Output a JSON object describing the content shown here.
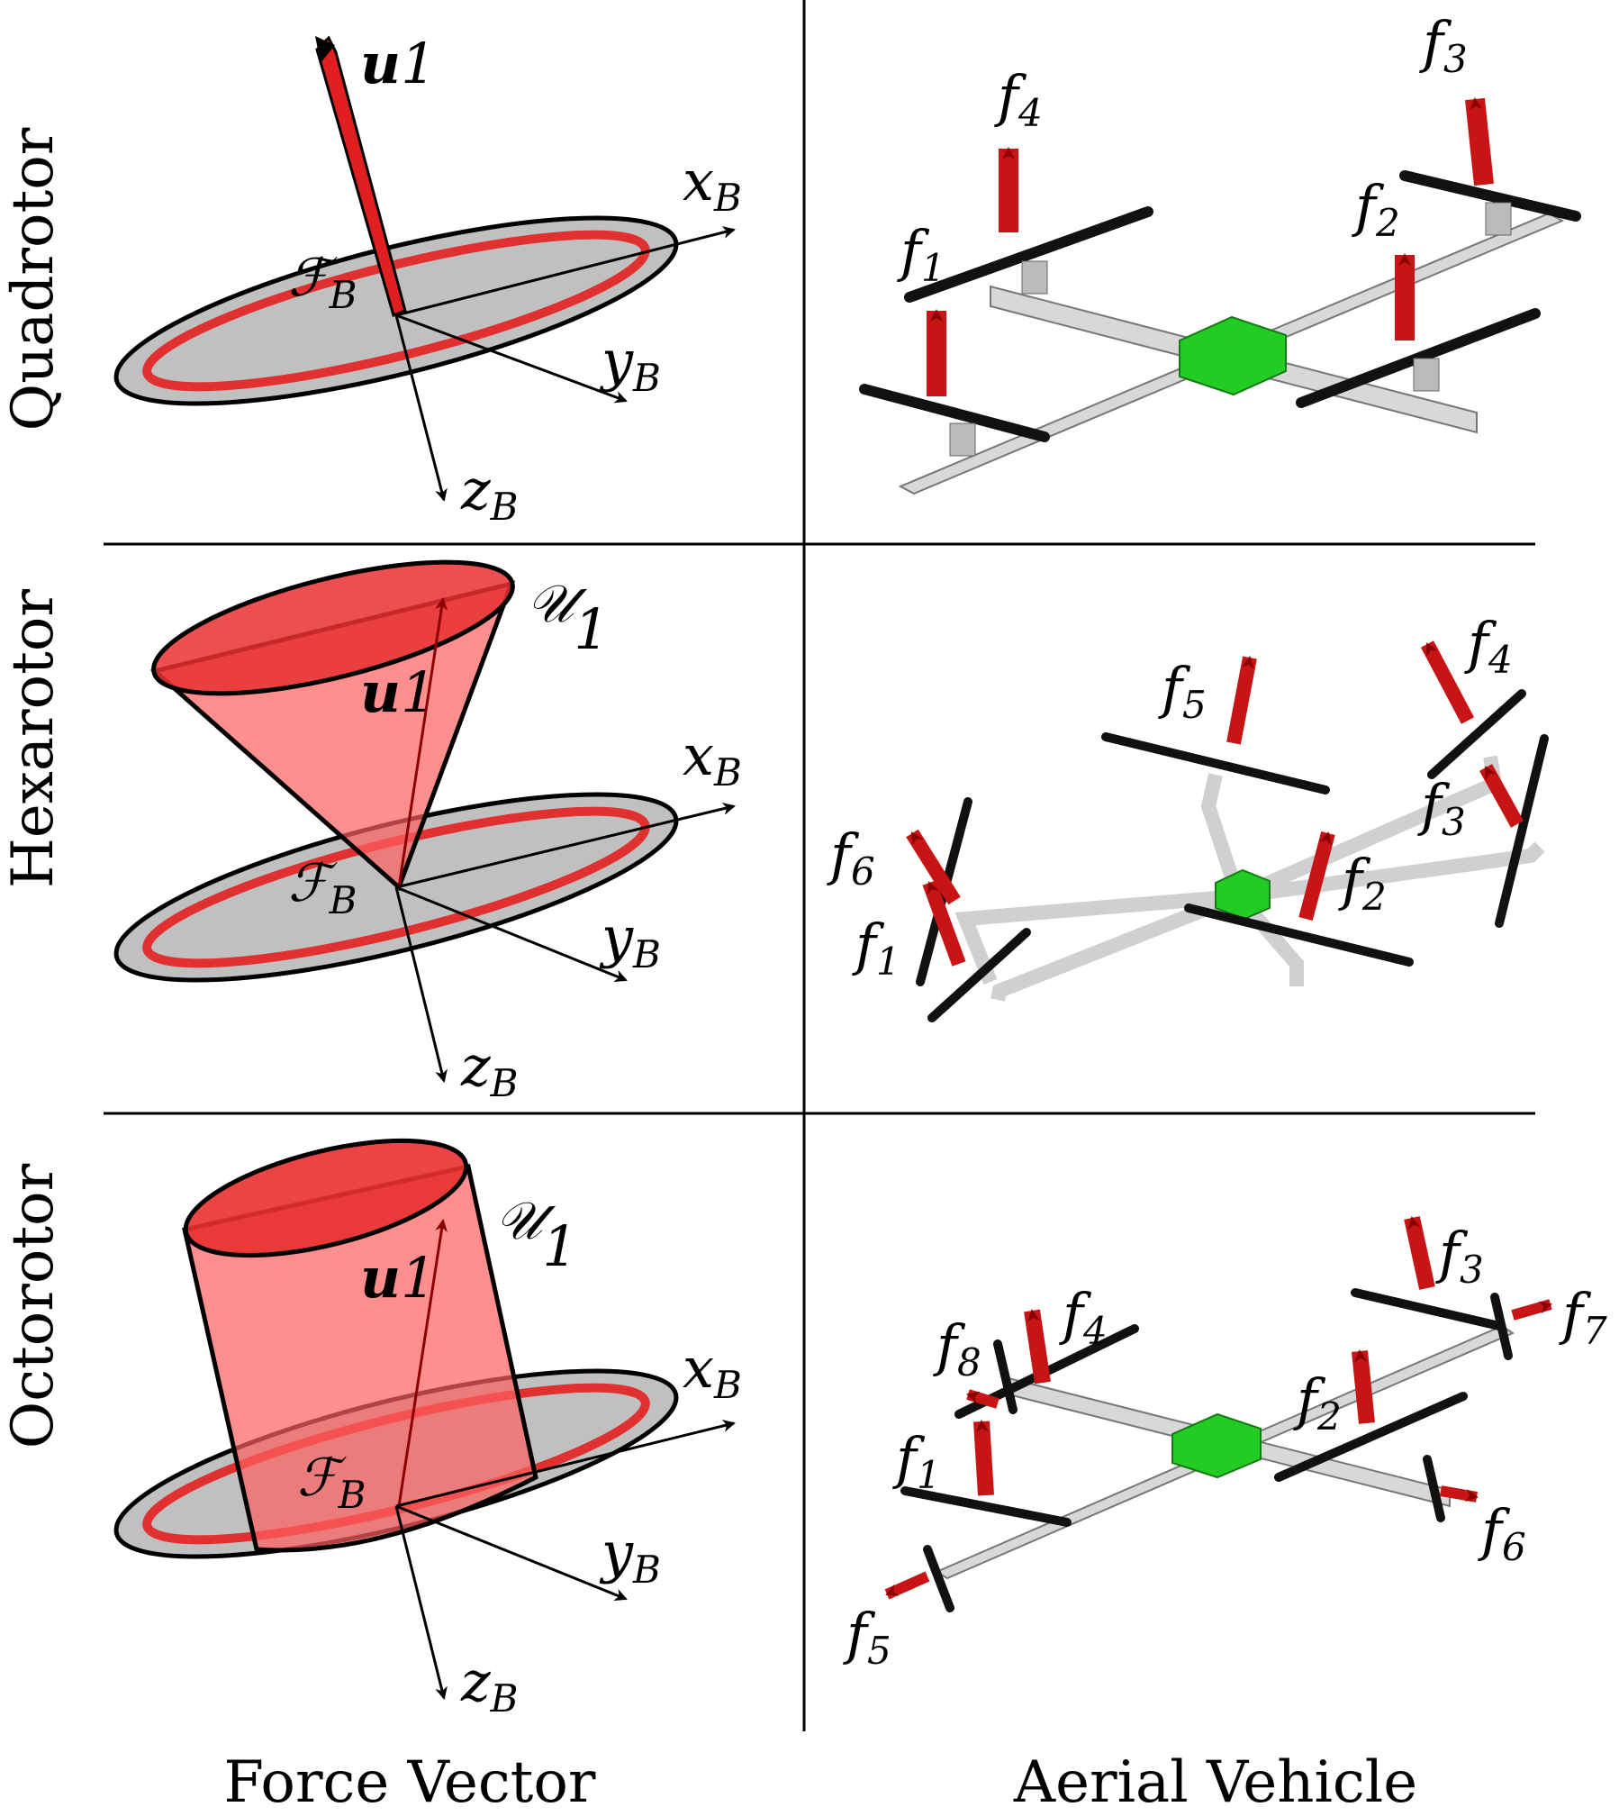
{
  "rows": [
    {
      "label": "Quadrotor"
    },
    {
      "label": "Hexarotor"
    },
    {
      "label": "Octorotor"
    }
  ],
  "columns": {
    "left": "Force Vector",
    "right": "Aerial Vehicle"
  },
  "axes": {
    "x": "x",
    "y": "y",
    "z": "z",
    "sub": "B"
  },
  "frame": {
    "symbol": "ℱ",
    "sub": "B"
  },
  "force": {
    "symbol": "u",
    "sub": "1"
  },
  "set": {
    "symbol": "𝒰",
    "sub": "1"
  },
  "thrust_symbol": "f",
  "quad_thrusts": [
    "1",
    "2",
    "3",
    "4"
  ],
  "hex_thrusts": [
    "1",
    "2",
    "3",
    "4",
    "5",
    "6"
  ],
  "oct_thrusts": [
    "1",
    "2",
    "3",
    "4",
    "5",
    "6",
    "7",
    "8"
  ],
  "colors": {
    "red": "#e02020",
    "dark_red": "#8b0000",
    "disk": "#c0c0c0",
    "frame": "#d8d8d8",
    "body": "#22cc22",
    "prop": "#111111"
  }
}
